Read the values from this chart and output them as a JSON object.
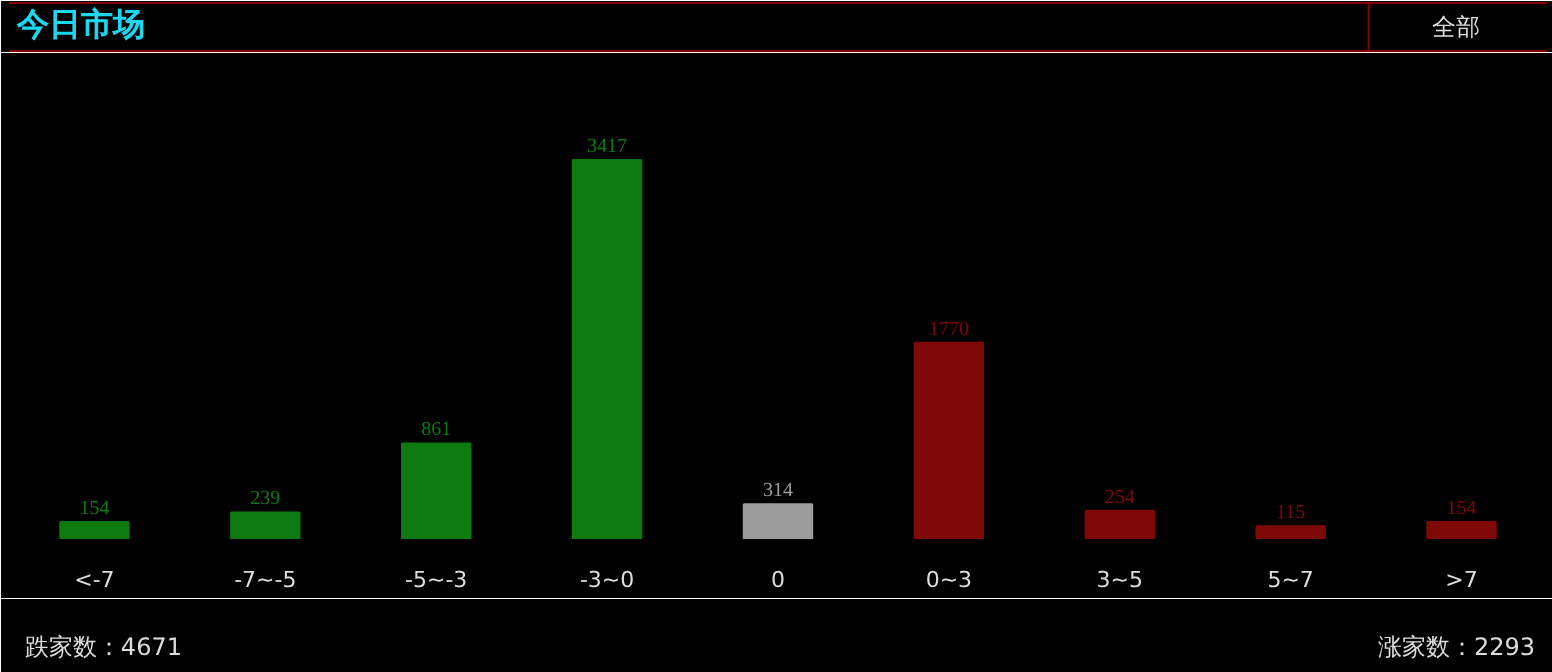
{
  "chart_data": {
    "type": "bar",
    "title": "今日市场",
    "categories": [
      "<-7",
      "-7~-5",
      "-5~-3",
      "-3~0",
      "0",
      "0~3",
      "3~5",
      "5~7",
      ">7"
    ],
    "values": [
      154,
      239,
      861,
      3417,
      314,
      1770,
      254,
      115,
      154
    ],
    "colors": [
      "#0f7a0f",
      "#0f7a0f",
      "#0f7a0f",
      "#0f7a0f",
      "#9c9c9c",
      "#7f0808",
      "#7f0808",
      "#7f0808",
      "#7f0808"
    ],
    "data_labels": true,
    "annotations": [
      "全部",
      "跌家数：4671",
      "涨家数：2293"
    ]
  }
}
